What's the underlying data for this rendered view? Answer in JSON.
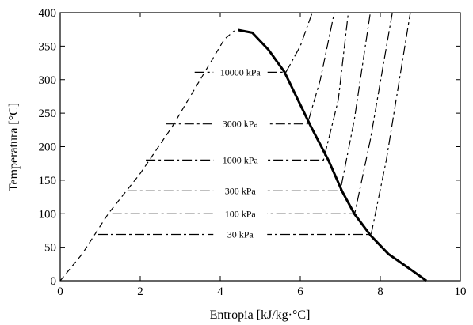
{
  "chart_data": {
    "type": "line",
    "xlabel": "Entropia [kJ/kg·°C]",
    "ylabel": "Temperatura [°C]",
    "xlim": [
      0,
      10
    ],
    "ylim": [
      0,
      400
    ],
    "xticks": [
      "0",
      "2",
      "4",
      "6",
      "8",
      "10"
    ],
    "yticks": [
      "0",
      "50",
      "100",
      "150",
      "200",
      "250",
      "300",
      "350",
      "400"
    ],
    "grid": false,
    "series": [
      {
        "name": "",
        "style": "dashed",
        "values": [
          [
            0.0,
            0
          ],
          [
            0.55,
            40
          ],
          [
            1.2,
            100
          ],
          [
            2.0,
            160
          ],
          [
            2.8,
            230
          ],
          [
            3.4,
            290
          ],
          [
            3.8,
            330
          ],
          [
            4.1,
            360
          ],
          [
            4.35,
            373
          ]
        ]
      },
      {
        "name": "",
        "style": "solid-thick",
        "values": [
          [
            4.45,
            374
          ],
          [
            4.8,
            370
          ],
          [
            5.2,
            345
          ],
          [
            5.6,
            312
          ],
          [
            6.25,
            232
          ],
          [
            6.7,
            180
          ],
          [
            7.05,
            133
          ],
          [
            7.35,
            100
          ],
          [
            7.75,
            68
          ],
          [
            8.2,
            40
          ],
          [
            8.8,
            15
          ],
          [
            9.15,
            0
          ]
        ]
      },
      {
        "name": "10000 kPa",
        "style": "dash-dot",
        "values": [
          [
            3.36,
            311
          ],
          [
            5.64,
            311
          ],
          [
            6.0,
            350
          ],
          [
            6.3,
            400
          ]
        ]
      },
      {
        "name": "3000 kPa",
        "style": "dash-dot",
        "values": [
          [
            2.65,
            234
          ],
          [
            6.18,
            234
          ],
          [
            6.5,
            300
          ],
          [
            6.85,
            400
          ]
        ]
      },
      {
        "name": "1000 kPa",
        "style": "dash-dot",
        "values": [
          [
            2.14,
            180
          ],
          [
            6.58,
            180
          ],
          [
            6.95,
            270
          ],
          [
            7.2,
            400
          ]
        ]
      },
      {
        "name": "300 kPa",
        "style": "dash-dot",
        "values": [
          [
            1.68,
            134
          ],
          [
            7.0,
            134
          ],
          [
            7.35,
            240
          ],
          [
            7.75,
            400
          ]
        ]
      },
      {
        "name": "100 kPa",
        "style": "dash-dot",
        "values": [
          [
            1.3,
            100
          ],
          [
            7.36,
            100
          ],
          [
            7.75,
            210
          ],
          [
            8.3,
            400
          ]
        ]
      },
      {
        "name": "30 kPa",
        "style": "dash-dot",
        "values": [
          [
            0.95,
            69
          ],
          [
            7.77,
            69
          ],
          [
            8.15,
            180
          ],
          [
            8.75,
            400
          ]
        ]
      }
    ],
    "annotations": [
      {
        "text": "10000 kPa",
        "x": 4.5,
        "y": 311
      },
      {
        "text": "3000 kPa",
        "x": 4.5,
        "y": 234
      },
      {
        "text": "1000 kPa",
        "x": 4.5,
        "y": 180
      },
      {
        "text": "300 kPa",
        "x": 4.5,
        "y": 134
      },
      {
        "text": "100 kPa",
        "x": 4.5,
        "y": 100
      },
      {
        "text": "30 kPa",
        "x": 4.5,
        "y": 69
      }
    ]
  }
}
